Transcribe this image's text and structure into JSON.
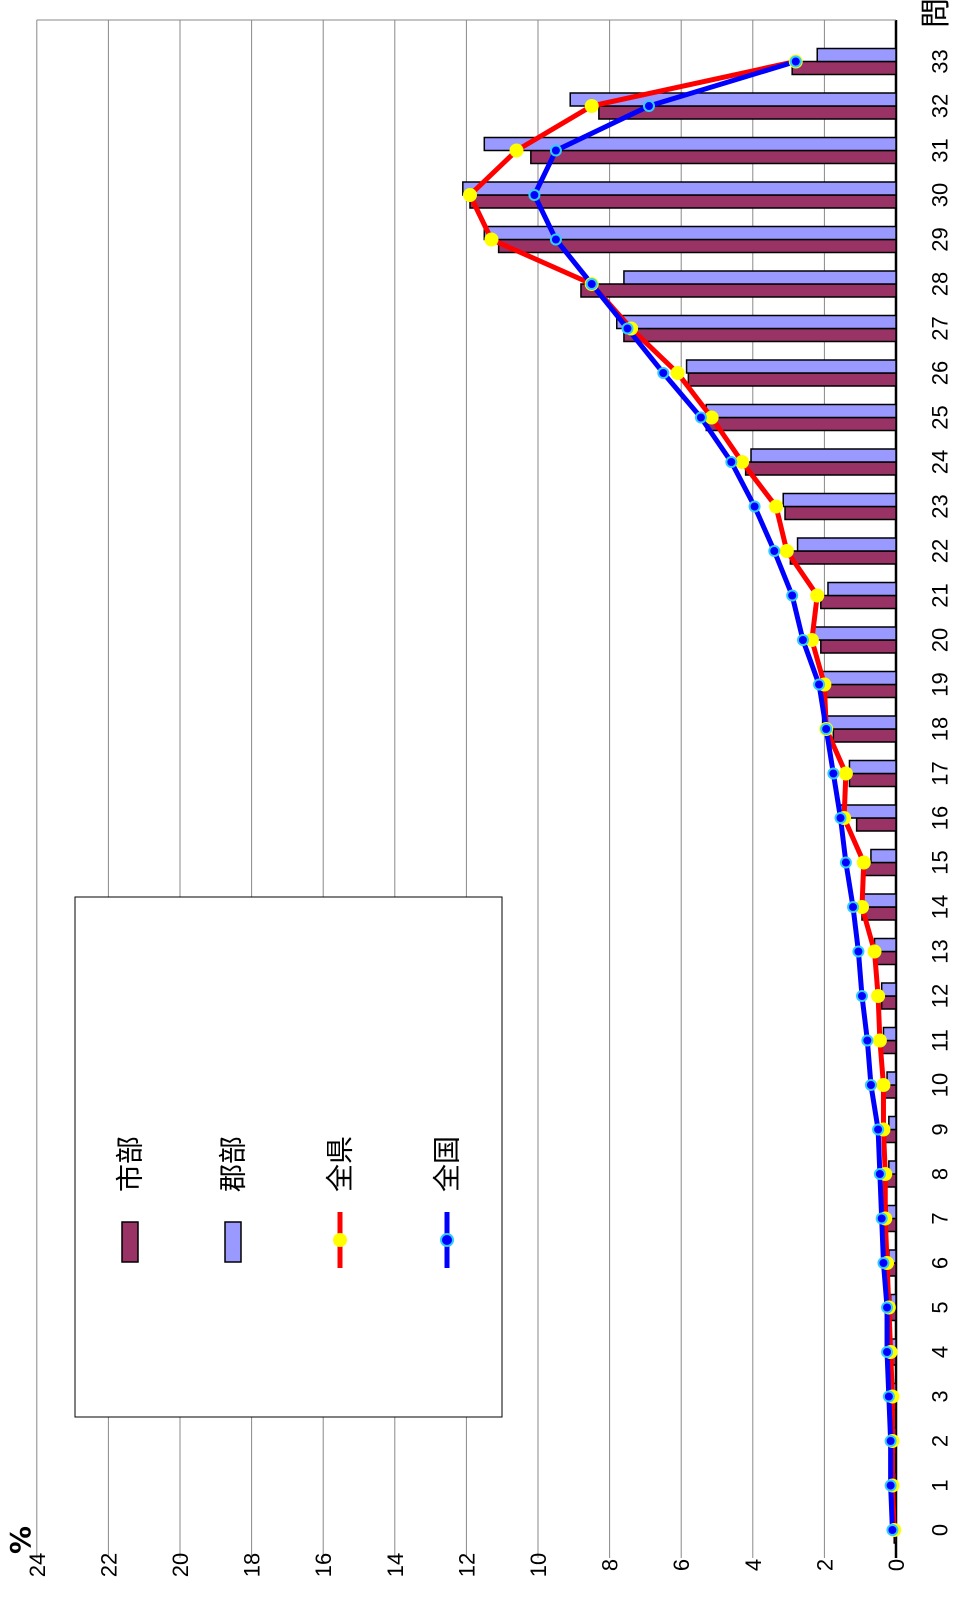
{
  "chart_data": {
    "type": "bar",
    "title": "",
    "xlabel": "問",
    "ylabel": "%",
    "ylim": [
      0,
      24
    ],
    "yticks": [
      0,
      2,
      4,
      6,
      8,
      10,
      12,
      14,
      16,
      18,
      20,
      22,
      24
    ],
    "categories": [
      "0",
      "1",
      "2",
      "3",
      "4",
      "5",
      "6",
      "7",
      "8",
      "9",
      "10",
      "11",
      "12",
      "13",
      "14",
      "15",
      "16",
      "17",
      "18",
      "19",
      "20",
      "21",
      "22",
      "23",
      "24",
      "25",
      "26",
      "27",
      "28",
      "29",
      "30",
      "31",
      "32",
      "33"
    ],
    "series": [
      {
        "name": "市部",
        "kind": "bar",
        "values": [
          0.05,
          0.1,
          0.1,
          0.1,
          0.15,
          0.2,
          0.25,
          0.3,
          0.3,
          0.35,
          0.35,
          0.45,
          0.4,
          0.6,
          0.95,
          0.9,
          1.1,
          1.3,
          1.75,
          1.95,
          2.1,
          2.1,
          2.95,
          3.1,
          4.2,
          5.3,
          5.8,
          7.6,
          8.8,
          11.1,
          11.9,
          10.2,
          8.3,
          2.9
        ]
      },
      {
        "name": "郡部",
        "kind": "bar",
        "values": [
          0.05,
          0.05,
          0.1,
          0.1,
          0.15,
          0.15,
          0.2,
          0.25,
          0.2,
          0.2,
          0.25,
          0.35,
          0.4,
          0.6,
          0.9,
          0.7,
          1.55,
          1.3,
          2.05,
          2.05,
          2.35,
          1.9,
          2.75,
          3.15,
          4.05,
          5.3,
          5.85,
          7.8,
          7.6,
          11.5,
          12.1,
          11.5,
          9.1,
          2.2
        ]
      },
      {
        "name": "全県",
        "kind": "line",
        "values": [
          0.05,
          0.1,
          0.1,
          0.1,
          0.15,
          0.2,
          0.25,
          0.3,
          0.3,
          0.35,
          0.35,
          0.45,
          0.5,
          0.6,
          0.95,
          0.9,
          1.45,
          1.4,
          1.95,
          2.0,
          2.35,
          2.2,
          3.05,
          3.35,
          4.3,
          5.15,
          6.1,
          7.4,
          8.5,
          11.3,
          11.9,
          10.6,
          8.5,
          2.8
        ]
      },
      {
        "name": "全国",
        "kind": "line",
        "values": [
          0.1,
          0.15,
          0.15,
          0.2,
          0.25,
          0.25,
          0.35,
          0.4,
          0.45,
          0.5,
          0.7,
          0.8,
          0.95,
          1.05,
          1.2,
          1.4,
          1.55,
          1.75,
          1.95,
          2.15,
          2.6,
          2.9,
          3.4,
          3.95,
          4.6,
          5.45,
          6.5,
          7.5,
          8.5,
          9.5,
          10.1,
          9.5,
          6.9,
          2.8
        ]
      }
    ],
    "grid": true,
    "legend_position": "left-middle"
  },
  "colors": {
    "shibu": "#993366",
    "gunbu": "#9999ff",
    "zenken": "#ff0000",
    "zenken_marker": "#ffff00",
    "zenkoku": "#0000ff",
    "zenkoku_marker": "#33ccff"
  }
}
